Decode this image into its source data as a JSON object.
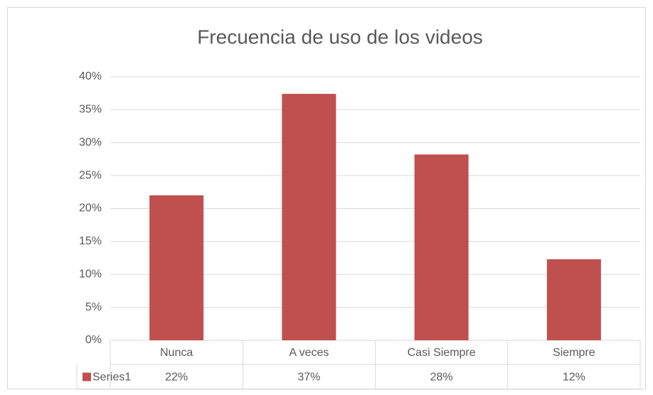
{
  "chart_data": {
    "type": "bar",
    "title": "Frecuencia de uso de los videos",
    "categories": [
      "Nunca",
      "A veces",
      "Casi Siempre",
      "Siempre"
    ],
    "series": [
      {
        "name": "Series1",
        "color": "#c0504d",
        "values": [
          22,
          37.4,
          28.2,
          12.3
        ],
        "value_labels": [
          "22%",
          "37%",
          "28%",
          "12%"
        ]
      }
    ],
    "ylim": [
      0,
      40
    ],
    "yticks": [
      {
        "value": 0,
        "label": "0%"
      },
      {
        "value": 5,
        "label": "5%"
      },
      {
        "value": 10,
        "label": "10%"
      },
      {
        "value": 15,
        "label": "15%"
      },
      {
        "value": 20,
        "label": "20%"
      },
      {
        "value": 25,
        "label": "25%"
      },
      {
        "value": 30,
        "label": "30%"
      },
      {
        "value": 35,
        "label": "35%"
      },
      {
        "value": 40,
        "label": "40%"
      }
    ],
    "grid": true
  }
}
